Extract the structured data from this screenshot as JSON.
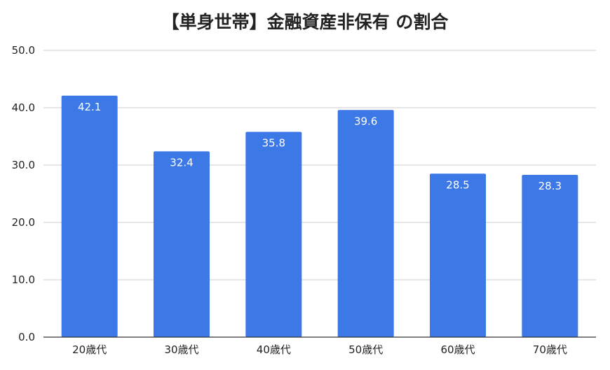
{
  "chart_data": {
    "type": "bar",
    "title": "【単身世帯】金融資産非保有 の割合",
    "categories": [
      "20歳代",
      "30歳代",
      "40歳代",
      "50歳代",
      "60歳代",
      "70歳代"
    ],
    "values": [
      42.1,
      32.4,
      35.8,
      39.6,
      28.5,
      28.3
    ],
    "data_labels": [
      "42.1",
      "32.4",
      "35.8",
      "39.6",
      "28.5",
      "28.3"
    ],
    "y_ticks": [
      "0.0",
      "10.0",
      "20.0",
      "30.0",
      "40.0",
      "50.0"
    ],
    "ylim": [
      0,
      50
    ],
    "grid": true,
    "xlabel": "",
    "ylabel": "",
    "bar_color": "#3c78e6",
    "grid_color": "#cccccc"
  }
}
